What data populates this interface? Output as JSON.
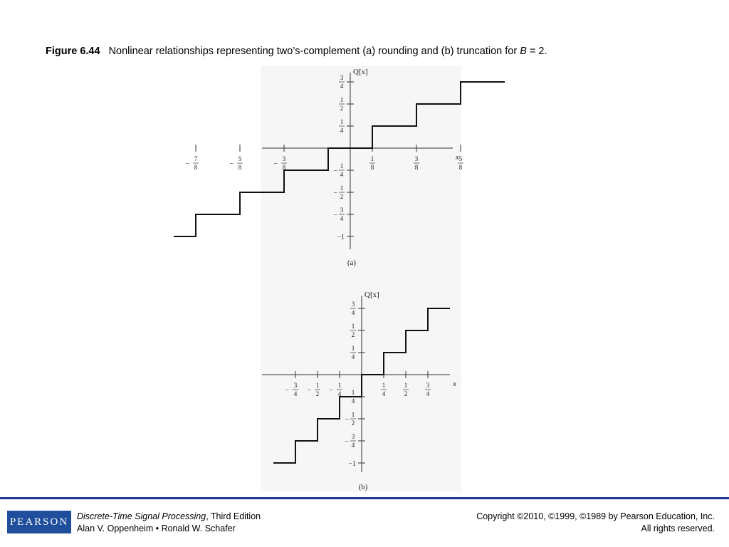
{
  "caption": {
    "figure_number": "Figure 6.44",
    "text_before": "Nonlinear relationships representing two’s-complement (a) rounding and (b) truncation for ",
    "variable": "B",
    "text_after": " = 2."
  },
  "chart_data": [
    {
      "type": "line",
      "panel_label": "(a)",
      "ylabel": "Q[x]",
      "xlabel": "x",
      "xlim": [
        -1,
        0.75
      ],
      "ylim": [
        -1,
        0.75
      ],
      "x_ticks": [
        {
          "value": -0.875,
          "num": "7",
          "den": "8",
          "neg": true
        },
        {
          "value": -0.625,
          "num": "5",
          "den": "8",
          "neg": true
        },
        {
          "value": -0.375,
          "num": "3",
          "den": "8",
          "neg": true
        },
        {
          "value": 0.125,
          "num": "1",
          "den": "8",
          "neg": false
        },
        {
          "value": 0.375,
          "num": "3",
          "den": "8",
          "neg": false
        },
        {
          "value": 0.625,
          "num": "5",
          "den": "8",
          "neg": false
        }
      ],
      "y_ticks": [
        {
          "value": 0.75,
          "num": "3",
          "den": "4",
          "neg": false
        },
        {
          "value": 0.5,
          "num": "1",
          "den": "2",
          "neg": false
        },
        {
          "value": 0.25,
          "num": "1",
          "den": "4",
          "neg": false
        },
        {
          "value": -0.25,
          "num": "1",
          "den": "4",
          "neg": true
        },
        {
          "value": -0.5,
          "num": "1",
          "den": "2",
          "neg": true
        },
        {
          "value": -0.75,
          "num": "3",
          "den": "4",
          "neg": true
        },
        {
          "value": -1,
          "text": "−1"
        }
      ],
      "steps": [
        {
          "x0": -1,
          "x1": -0.875,
          "y": -1
        },
        {
          "x0": -0.875,
          "x1": -0.625,
          "y": -0.75
        },
        {
          "x0": -0.625,
          "x1": -0.375,
          "y": -0.5
        },
        {
          "x0": -0.375,
          "x1": -0.125,
          "y": -0.25
        },
        {
          "x0": -0.125,
          "x1": 0.125,
          "y": 0
        },
        {
          "x0": 0.125,
          "x1": 0.375,
          "y": 0.25
        },
        {
          "x0": 0.375,
          "x1": 0.625,
          "y": 0.5
        },
        {
          "x0": 0.625,
          "x1": 0.875,
          "y": 0.75
        }
      ]
    },
    {
      "type": "line",
      "panel_label": "(b)",
      "ylabel": "Q[x]",
      "xlabel": "x",
      "xlim": [
        -1,
        1
      ],
      "ylim": [
        -1,
        0.75
      ],
      "x_ticks": [
        {
          "value": -0.75,
          "num": "3",
          "den": "4",
          "neg": true
        },
        {
          "value": -0.5,
          "num": "1",
          "den": "2",
          "neg": true
        },
        {
          "value": -0.25,
          "num": "1",
          "den": "4",
          "neg": true
        },
        {
          "value": 0.25,
          "num": "1",
          "den": "4",
          "neg": false
        },
        {
          "value": 0.5,
          "num": "1",
          "den": "2",
          "neg": false
        },
        {
          "value": 0.75,
          "num": "3",
          "den": "4",
          "neg": false
        }
      ],
      "y_ticks": [
        {
          "value": 0.75,
          "num": "3",
          "den": "4",
          "neg": false
        },
        {
          "value": 0.5,
          "num": "1",
          "den": "2",
          "neg": false
        },
        {
          "value": 0.25,
          "num": "1",
          "den": "4",
          "neg": false
        },
        {
          "value": -0.25,
          "num": "1",
          "den": "4",
          "neg": true
        },
        {
          "value": -0.5,
          "num": "1",
          "den": "2",
          "neg": true
        },
        {
          "value": -0.75,
          "num": "3",
          "den": "4",
          "neg": true
        },
        {
          "value": -1,
          "text": "−1"
        }
      ],
      "steps": [
        {
          "x0": -1,
          "x1": -0.75,
          "y": -1
        },
        {
          "x0": -0.75,
          "x1": -0.5,
          "y": -0.75
        },
        {
          "x0": -0.5,
          "x1": -0.25,
          "y": -0.5
        },
        {
          "x0": -0.25,
          "x1": 0,
          "y": -0.25
        },
        {
          "x0": 0,
          "x1": 0.25,
          "y": 0
        },
        {
          "x0": 0.25,
          "x1": 0.5,
          "y": 0.25
        },
        {
          "x0": 0.5,
          "x1": 0.75,
          "y": 0.5
        },
        {
          "x0": 0.75,
          "x1": 1,
          "y": 0.75
        }
      ]
    }
  ],
  "footer": {
    "logo_text": "PEARSON",
    "book_title": "Discrete-Time Signal Processing",
    "book_edition": ", Third Edition",
    "authors": "Alan V. Oppenheim • Ronald W. Schafer",
    "copyright": "Copyright ©2010, ©1999, ©1989 by Pearson Education, Inc.",
    "rights": "All rights reserved."
  },
  "colors": {
    "rule": "#1f3a93",
    "logo_bg": "#1f4e9c",
    "figure_bg": "#f6f6f6"
  }
}
